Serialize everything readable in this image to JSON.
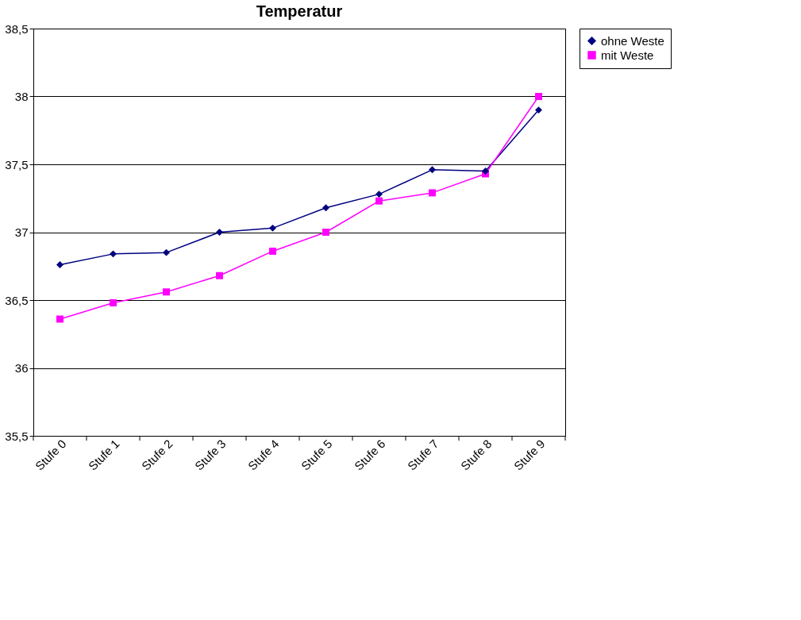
{
  "chart_data": {
    "type": "line",
    "title": "Temperatur",
    "categories": [
      "Stufe 0",
      "Stufe 1",
      "Stufe 2",
      "Stufe 3",
      "Stufe 4",
      "Stufe 5",
      "Stufe 6",
      "Stufe 7",
      "Stufe 8",
      "Stufe 9"
    ],
    "series": [
      {
        "name": "ohne Weste",
        "color": "#000080",
        "marker": "diamond",
        "values": [
          36.76,
          36.84,
          36.85,
          37.0,
          37.03,
          37.18,
          37.28,
          37.46,
          37.45,
          37.9
        ]
      },
      {
        "name": "mit Weste",
        "color": "#ff00ff",
        "marker": "square",
        "values": [
          36.36,
          36.48,
          36.56,
          36.68,
          36.86,
          37.0,
          37.23,
          37.29,
          37.43,
          38.0
        ]
      }
    ],
    "ylim": [
      35.5,
      38.5
    ],
    "yticks": [
      {
        "value": 35.5,
        "label": "35,5"
      },
      36,
      {
        "value": 36.5,
        "label": "36,5"
      },
      37,
      {
        "value": 37.5,
        "label": "37,5"
      },
      38,
      {
        "value": 38.5,
        "label": "38,5"
      }
    ],
    "grid": "y",
    "legend": "right",
    "line_style": "solid"
  }
}
